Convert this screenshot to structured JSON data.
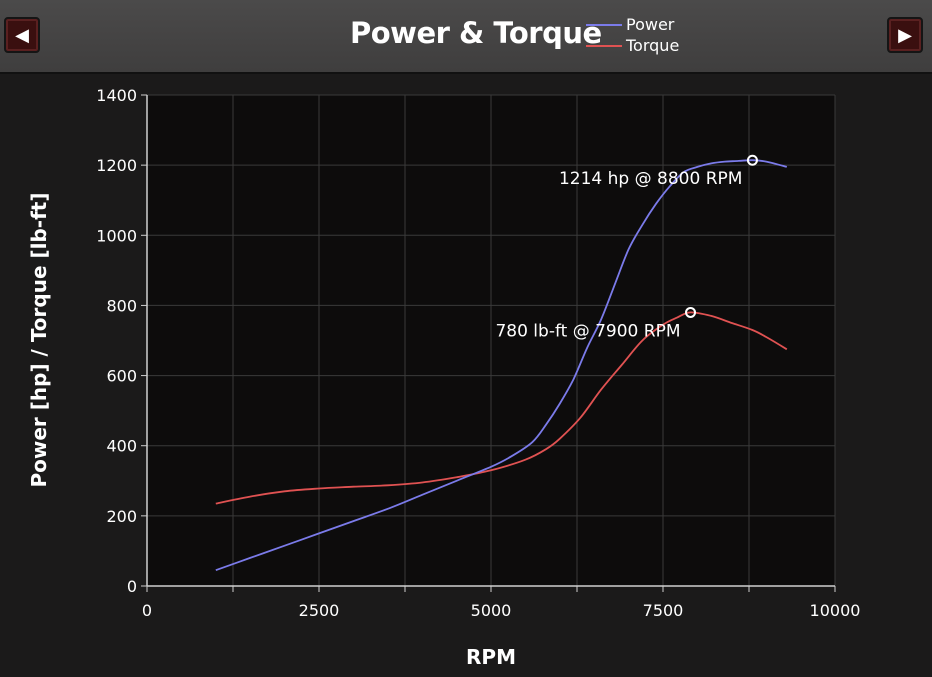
{
  "header": {
    "title": "Power & Torque",
    "prev_icon": "triangle-left-icon",
    "next_icon": "triangle-right-icon",
    "prev_glyph": "◀",
    "next_glyph": "▶"
  },
  "colors": {
    "power": "#7b7bea",
    "torque": "#e05252",
    "plot_bg": "#0d0c0c",
    "grid": "#3a3a3a"
  },
  "chart_data": {
    "type": "line",
    "xlabel": "RPM",
    "ylabel": "Power [hp] / Torque [lb-ft]",
    "xlim": [
      0,
      10000
    ],
    "ylim": [
      0,
      1400
    ],
    "x_ticks": [
      0,
      2500,
      5000,
      7500,
      10000
    ],
    "y_ticks": [
      0,
      200,
      400,
      600,
      800,
      1000,
      1200,
      1400
    ],
    "x_grid": [
      0,
      1250,
      2500,
      3750,
      5000,
      6250,
      7500,
      8750,
      10000
    ],
    "grid": true,
    "legend_position": "top",
    "series": [
      {
        "name": "Power",
        "x": [
          1000,
          1500,
          2000,
          2500,
          3000,
          3500,
          4000,
          4500,
          5000,
          5300,
          5600,
          5800,
          6000,
          6200,
          6400,
          6600,
          6800,
          7000,
          7200,
          7400,
          7600,
          7800,
          8000,
          8200,
          8400,
          8600,
          8800,
          9000,
          9300
        ],
        "y": [
          45,
          80,
          115,
          150,
          185,
          220,
          260,
          300,
          340,
          370,
          410,
          460,
          520,
          590,
          680,
          760,
          860,
          960,
          1030,
          1090,
          1140,
          1180,
          1195,
          1205,
          1210,
          1212,
          1214,
          1210,
          1195
        ]
      },
      {
        "name": "Torque",
        "x": [
          1000,
          1500,
          2000,
          2500,
          3000,
          3500,
          4000,
          4500,
          5000,
          5500,
          5800,
          6000,
          6300,
          6600,
          6900,
          7200,
          7500,
          7700,
          7900,
          8200,
          8500,
          8800,
          9000,
          9300
        ],
        "y": [
          235,
          255,
          270,
          278,
          283,
          287,
          295,
          310,
          330,
          360,
          390,
          420,
          480,
          560,
          630,
          700,
          745,
          765,
          780,
          770,
          750,
          730,
          710,
          675
        ]
      }
    ],
    "annotations": [
      {
        "text": "1214 hp @ 8800 RPM",
        "x": 8800,
        "y": 1214,
        "series": "Power"
      },
      {
        "text": "780 lb-ft @ 7900 RPM",
        "x": 7900,
        "y": 780,
        "series": "Torque"
      }
    ]
  }
}
